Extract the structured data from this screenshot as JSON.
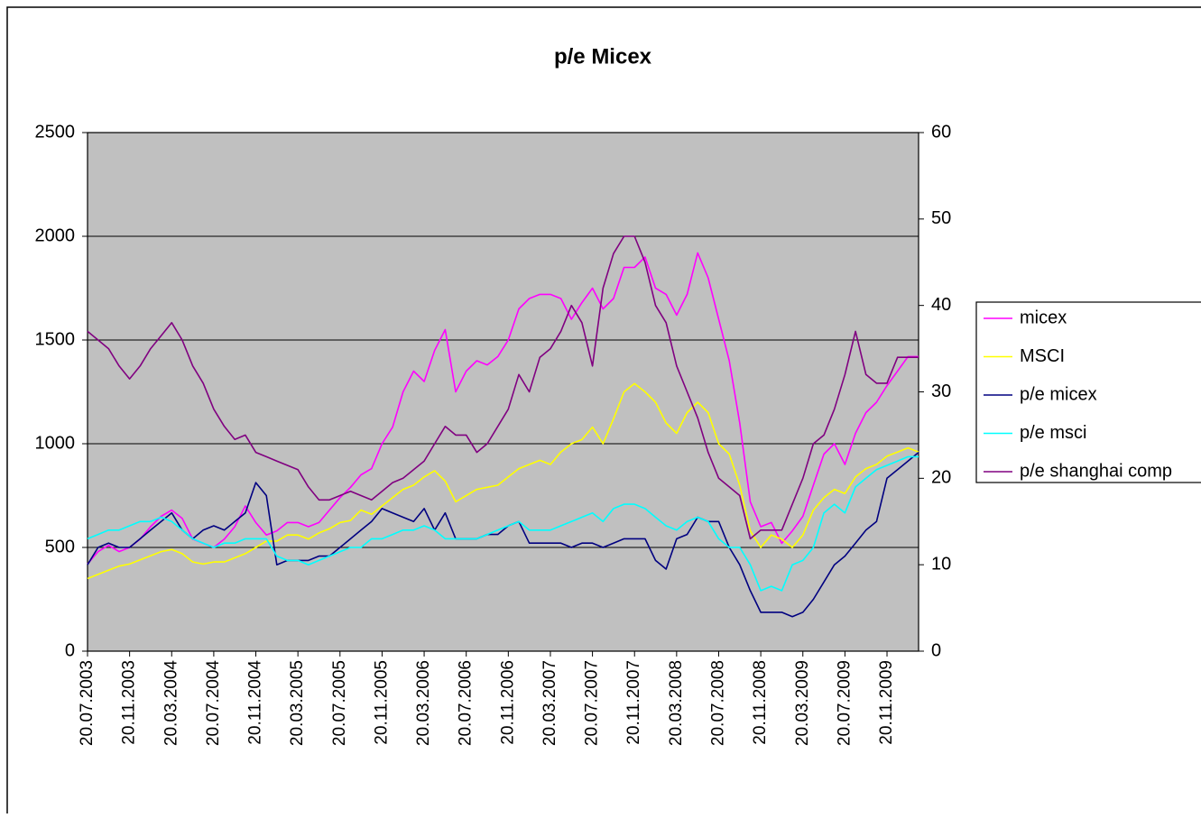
{
  "chart_data": {
    "type": "line",
    "title": "p/e Micex",
    "categories": [
      "20.07.2003",
      null,
      null,
      null,
      "20.11.2003",
      null,
      null,
      null,
      "20.03.2004",
      null,
      null,
      null,
      "20.07.2004",
      null,
      null,
      null,
      "20.11.2004",
      null,
      null,
      null,
      "20.03.2005",
      null,
      null,
      null,
      "20.07.2005",
      null,
      null,
      null,
      "20.11.2005",
      null,
      null,
      null,
      "20.03.2006",
      null,
      null,
      null,
      "20.07.2006",
      null,
      null,
      null,
      "20.11.2006",
      null,
      null,
      null,
      "20.03.2007",
      null,
      null,
      null,
      "20.07.2007",
      null,
      null,
      null,
      "20.11.2007",
      null,
      null,
      null,
      "20.03.2008",
      null,
      null,
      null,
      "20.07.2008",
      null,
      null,
      null,
      "20.11.2008",
      null,
      null,
      null,
      "20.03.2009",
      null,
      null,
      null,
      "20.07.2009",
      null,
      null,
      null,
      "20.11.2009",
      null,
      null,
      null
    ],
    "series": [
      {
        "name": "micex",
        "color": "#ff00ff",
        "values": [
          420,
          480,
          510,
          480,
          500,
          540,
          600,
          650,
          680,
          640,
          540,
          520,
          500,
          540,
          600,
          700,
          620,
          560,
          580,
          620,
          620,
          600,
          620,
          680,
          740,
          790,
          850,
          880,
          1000,
          1080,
          1250,
          1350,
          1300,
          1450,
          1550,
          1250,
          1350,
          1400,
          1380,
          1420,
          1500,
          1650,
          1700,
          1720,
          1720,
          1700,
          1600,
          1680,
          1750,
          1650,
          1700,
          1850,
          1850,
          1900,
          1750,
          1720,
          1620,
          1720,
          1920,
          1800,
          1600,
          1400,
          1100,
          720,
          600,
          620,
          520,
          580,
          650,
          800,
          950,
          1000,
          900,
          1050,
          1150,
          1200,
          1280,
          1350,
          1420,
          1420
        ]
      },
      {
        "name": "MSCI",
        "color": "#ffff00",
        "values": [
          350,
          370,
          390,
          410,
          420,
          440,
          460,
          480,
          490,
          470,
          430,
          420,
          430,
          430,
          450,
          470,
          500,
          530,
          530,
          560,
          560,
          540,
          570,
          590,
          620,
          630,
          680,
          660,
          700,
          740,
          780,
          800,
          840,
          870,
          820,
          720,
          750,
          780,
          790,
          800,
          840,
          880,
          900,
          920,
          900,
          960,
          1000,
          1020,
          1080,
          1000,
          1120,
          1250,
          1290,
          1250,
          1200,
          1100,
          1050,
          1150,
          1200,
          1150,
          1000,
          950,
          800,
          580,
          500,
          560,
          540,
          500,
          560,
          680,
          740,
          780,
          760,
          840,
          880,
          900,
          940,
          960,
          980,
          960
        ]
      },
      {
        "name": "p/e micex",
        "color": "#000080",
        "axis": "y2",
        "values": [
          10,
          12,
          12.5,
          12,
          12,
          13,
          14,
          15,
          16,
          14,
          13,
          14,
          14.5,
          14,
          15,
          16,
          19.5,
          18,
          10,
          10.5,
          10.5,
          10.5,
          11,
          11,
          12,
          13,
          14,
          15,
          16.5,
          16,
          15.5,
          15,
          16.5,
          14,
          16,
          13,
          13,
          13,
          13.5,
          13.5,
          14.5,
          15,
          12.5,
          12.5,
          12.5,
          12.5,
          12,
          12.5,
          12.5,
          12,
          12.5,
          13,
          13,
          13,
          10.5,
          9.5,
          13,
          13.5,
          15.5,
          15,
          15,
          12,
          10,
          7,
          4.5,
          4.5,
          4.5,
          4,
          4.5,
          6,
          8,
          10,
          11,
          12.5,
          14,
          15,
          20,
          21,
          22,
          23
        ]
      },
      {
        "name": "p/e msci",
        "color": "#00ffff",
        "axis": "y2",
        "values": [
          13,
          13.5,
          14,
          14,
          14.5,
          15,
          15,
          15.5,
          15,
          14,
          13,
          12.5,
          12,
          12.5,
          12.5,
          13,
          13,
          13,
          11,
          10.5,
          10.5,
          10,
          10.5,
          11,
          11.5,
          12,
          12,
          13,
          13,
          13.5,
          14,
          14,
          14.5,
          14,
          13,
          13,
          13,
          13,
          13.5,
          14,
          14.5,
          15,
          14,
          14,
          14,
          14.5,
          15,
          15.5,
          16,
          15,
          16.5,
          17,
          17,
          16.5,
          15.5,
          14.5,
          14,
          15,
          15.5,
          15,
          13,
          12,
          12,
          10,
          7,
          7.5,
          7,
          10,
          10.5,
          12,
          16,
          17,
          16,
          19,
          20,
          21,
          21.5,
          22,
          22.5,
          22.5
        ]
      },
      {
        "name": "p/e shanghai comp",
        "color": "#800080",
        "axis": "y2",
        "values": [
          37,
          36,
          35,
          33,
          31.5,
          33,
          35,
          36.5,
          38,
          36,
          33,
          31,
          28,
          26,
          24.5,
          25,
          23,
          22.5,
          22,
          21.5,
          21,
          19,
          17.5,
          17.5,
          18,
          18.5,
          18,
          17.5,
          18.5,
          19.5,
          20,
          21,
          22,
          24,
          26,
          25,
          25,
          23,
          24,
          26,
          28,
          32,
          30,
          34,
          35,
          37,
          40,
          38,
          33,
          42,
          46,
          48,
          48,
          45,
          40,
          38,
          33,
          30,
          27,
          23,
          20,
          19,
          18,
          13,
          14,
          14,
          14,
          17,
          20,
          24,
          25,
          28,
          32,
          37,
          32,
          31,
          31,
          34,
          34,
          34
        ]
      }
    ],
    "ylim": [
      0,
      2500
    ],
    "yticks": [
      0,
      500,
      1000,
      1500,
      2000,
      2500
    ],
    "y2lim": [
      0,
      60
    ],
    "y2ticks": [
      0,
      10,
      20,
      30,
      40,
      50,
      60
    ],
    "grid": true,
    "legend": "right",
    "plot_background": "#c0c0c0"
  }
}
